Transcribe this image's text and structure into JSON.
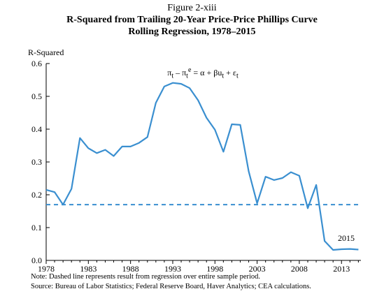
{
  "figure_label": "Figure 2-xiii",
  "title_line1": "R-Squared from Trailing 20-Year Price-Price Phillips Curve",
  "title_line2": "Rolling Regression, 1978–2015",
  "equation": "π<sub>t</sub> – π<sub>t</sub><sup>e</sup> = α + βu<sub>t</sub> + ε<sub>t</sub>",
  "note": "Note: Dashed line represents result from regression over entire sample period.",
  "source": "Source: Bureau of Labor Statistics; Federal Reserve Board, Haver Analytics; CEA calculations.",
  "colors": {
    "series": "#3a8fd0",
    "axis": "#000000"
  },
  "chart_data": {
    "type": "line",
    "ylabel": "R-Squared",
    "xlabel": "",
    "ylim": [
      0.0,
      0.6
    ],
    "xlim": [
      1978,
      2015.3
    ],
    "yticks": [
      "0.0",
      "0.1",
      "0.2",
      "0.3",
      "0.4",
      "0.5",
      "0.6"
    ],
    "xticks": [
      "1978",
      "1983",
      "1988",
      "1993",
      "1998",
      "2003",
      "2008",
      "2013"
    ],
    "end_label": "2015",
    "reference_line": {
      "value": 0.17,
      "style": "dashed"
    },
    "series": [
      {
        "x": [
          1978,
          1979,
          1980,
          1981,
          1982,
          1983,
          1984,
          1985,
          1986,
          1987,
          1988,
          1989,
          1990,
          1991,
          1992,
          1993,
          1994,
          1995,
          1996,
          1997,
          1998,
          1999,
          2000,
          2001,
          2002,
          2003,
          2004,
          2005,
          2006,
          2007,
          2008,
          2009,
          2010,
          2011,
          2012,
          2013,
          2014,
          2015
        ],
        "values": [
          0.215,
          0.208,
          0.17,
          0.218,
          0.373,
          0.342,
          0.327,
          0.337,
          0.318,
          0.347,
          0.347,
          0.358,
          0.376,
          0.48,
          0.53,
          0.541,
          0.538,
          0.525,
          0.488,
          0.435,
          0.398,
          0.331,
          0.415,
          0.413,
          0.272,
          0.174,
          0.255,
          0.245,
          0.251,
          0.269,
          0.258,
          0.159,
          0.23,
          0.059,
          0.032,
          0.034,
          0.035,
          0.033
        ]
      }
    ]
  }
}
